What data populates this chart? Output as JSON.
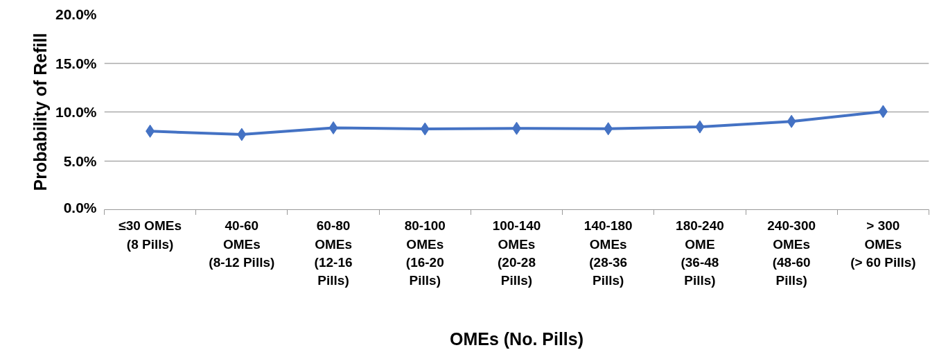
{
  "chart_data": {
    "type": "line",
    "xlabel": "OMEs (No. Pills)",
    "ylabel": "Probability of Refill",
    "categories": [
      "≤30 OMEs\n(8 Pills)",
      "40-60\nOMEs\n(8-12 Pills)",
      "60-80\nOMEs\n(12-16\nPills)",
      "80-100\nOMEs\n(16-20\nPills)",
      "100-140\nOMEs\n(20-28\nPills)",
      "140-180\nOMEs\n(28-36\nPills)",
      "180-240\nOME\n(36-48\nPills)",
      "240-300\nOMEs\n(48-60\nPills)",
      "> 300\nOMEs\n(> 60 Pills)"
    ],
    "series": [
      {
        "color": "#4472c4",
        "values": [
          8.03,
          7.69,
          8.37,
          8.26,
          8.32,
          8.28,
          8.47,
          9.03,
          10.04
        ]
      }
    ],
    "ylim": [
      0,
      20
    ],
    "yticks": [
      {
        "value": 0,
        "label": "0.0%"
      },
      {
        "value": 5,
        "label": "5.0%"
      },
      {
        "value": 10,
        "label": "10.0%"
      },
      {
        "value": 15,
        "label": "15.0%"
      },
      {
        "value": 20,
        "label": "20.0%"
      }
    ],
    "grid": "y",
    "marker": "diamond",
    "line_style": "solid"
  }
}
